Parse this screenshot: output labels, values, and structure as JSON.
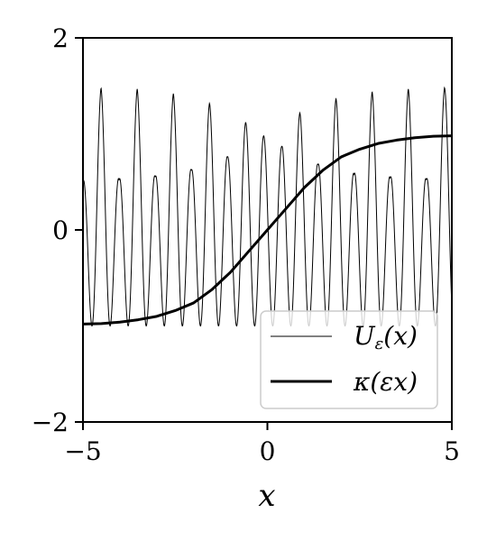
{
  "chart_data": {
    "type": "line",
    "xlabel": "x",
    "ylabel": "",
    "xlim": [
      -5,
      5
    ],
    "ylim": [
      -2,
      2
    ],
    "x_ticks": [
      "−5",
      "0",
      "5"
    ],
    "y_ticks": [
      "−2",
      "0",
      "2"
    ],
    "grid": false,
    "legend_position": "bottom-right",
    "series": [
      {
        "name": "U_ε(x)",
        "legend_label": "Uε(x)",
        "style": "thin",
        "color": "#000000",
        "description": "rapid oscillation between -1 and a peak that dips near x=0",
        "x": [
          -5,
          -4.51,
          -4.02,
          -3.53,
          -3.04,
          -2.55,
          -2.06,
          -1.57,
          -1.08,
          -0.59,
          -0.1,
          0.39,
          0.88,
          1.37,
          1.86,
          2.35,
          2.84,
          3.33,
          3.82,
          4.31,
          4.8,
          5
        ],
        "y_peaks": [
          0.5,
          1.48,
          0.52,
          1.47,
          0.55,
          1.42,
          0.62,
          1.32,
          0.76,
          1.12,
          0.98,
          0.87,
          1.22,
          0.68,
          1.37,
          0.58,
          1.44,
          0.54,
          1.47,
          0.52,
          1.48,
          1.48
        ],
        "y_min": -1
      },
      {
        "name": "κ(εx)",
        "legend_label": "κ(εx)",
        "style": "thick",
        "color": "#000000",
        "x": [
          -5,
          -4.5,
          -4,
          -3.5,
          -3,
          -2.5,
          -2,
          -1.5,
          -1,
          -0.5,
          0,
          0.5,
          1,
          1.5,
          2,
          2.5,
          3,
          3.5,
          4,
          4.5,
          5
        ],
        "y": [
          -0.98,
          -0.975,
          -0.96,
          -0.935,
          -0.9,
          -0.84,
          -0.76,
          -0.62,
          -0.44,
          -0.22,
          0.0,
          0.22,
          0.44,
          0.62,
          0.76,
          0.84,
          0.9,
          0.935,
          0.96,
          0.975,
          0.98
        ]
      }
    ]
  }
}
